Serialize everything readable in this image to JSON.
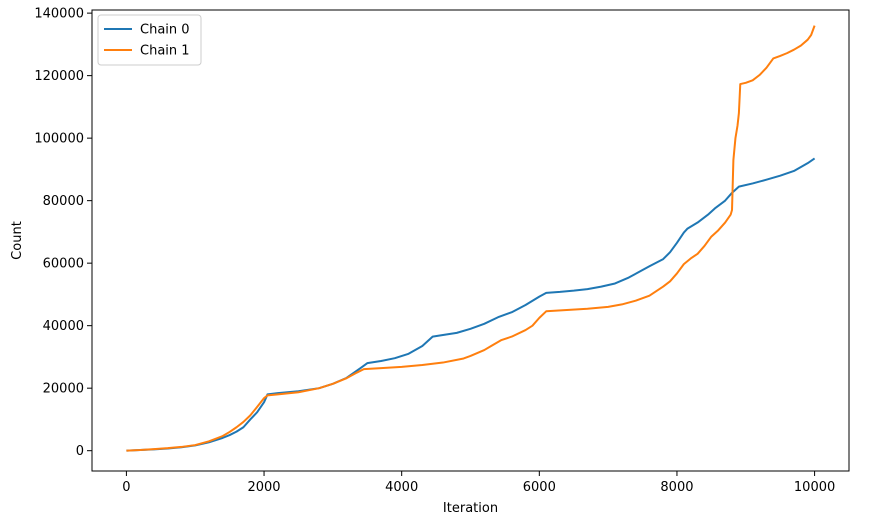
{
  "chart_data": {
    "type": "line",
    "title": "",
    "xlabel": "Iteration",
    "ylabel": "Count",
    "xlim": [
      -500,
      10500
    ],
    "ylim": [
      -6500,
      141000
    ],
    "xticks": [
      0,
      2000,
      4000,
      6000,
      8000,
      10000
    ],
    "yticks": [
      0,
      20000,
      40000,
      60000,
      80000,
      100000,
      120000,
      140000
    ],
    "grid": false,
    "legend_position": "top-left",
    "series": [
      {
        "name": "Chain 0",
        "color": "#1f77b4",
        "points": [
          [
            0,
            0
          ],
          [
            200,
            200
          ],
          [
            400,
            400
          ],
          [
            600,
            700
          ],
          [
            800,
            1100
          ],
          [
            1000,
            1700
          ],
          [
            1200,
            2700
          ],
          [
            1400,
            4100
          ],
          [
            1500,
            5000
          ],
          [
            1600,
            6100
          ],
          [
            1700,
            7500
          ],
          [
            1800,
            10000
          ],
          [
            1900,
            12300
          ],
          [
            2000,
            15500
          ],
          [
            2050,
            18000
          ],
          [
            2200,
            18400
          ],
          [
            2500,
            19000
          ],
          [
            2800,
            20000
          ],
          [
            3000,
            21400
          ],
          [
            3200,
            23300
          ],
          [
            3400,
            26400
          ],
          [
            3500,
            28000
          ],
          [
            3700,
            28700
          ],
          [
            3900,
            29600
          ],
          [
            4100,
            31000
          ],
          [
            4300,
            33500
          ],
          [
            4450,
            36500
          ],
          [
            4600,
            37000
          ],
          [
            4800,
            37700
          ],
          [
            5000,
            39000
          ],
          [
            5200,
            40600
          ],
          [
            5400,
            42700
          ],
          [
            5600,
            44300
          ],
          [
            5800,
            46600
          ],
          [
            6000,
            49300
          ],
          [
            6100,
            50500
          ],
          [
            6300,
            50800
          ],
          [
            6500,
            51200
          ],
          [
            6700,
            51700
          ],
          [
            6900,
            52500
          ],
          [
            7100,
            53500
          ],
          [
            7300,
            55400
          ],
          [
            7500,
            57800
          ],
          [
            7600,
            59000
          ],
          [
            7800,
            61300
          ],
          [
            7900,
            63500
          ],
          [
            8000,
            66500
          ],
          [
            8100,
            69800
          ],
          [
            8150,
            71000
          ],
          [
            8300,
            73000
          ],
          [
            8450,
            75500
          ],
          [
            8550,
            77500
          ],
          [
            8700,
            80000
          ],
          [
            8800,
            82500
          ],
          [
            8900,
            84500
          ],
          [
            9100,
            85500
          ],
          [
            9300,
            86700
          ],
          [
            9500,
            88000
          ],
          [
            9700,
            89500
          ],
          [
            9900,
            92000
          ],
          [
            10000,
            93500
          ]
        ]
      },
      {
        "name": "Chain 1",
        "color": "#ff7f0e",
        "points": [
          [
            0,
            0
          ],
          [
            200,
            200
          ],
          [
            400,
            500
          ],
          [
            600,
            800
          ],
          [
            800,
            1200
          ],
          [
            1000,
            1800
          ],
          [
            1200,
            3000
          ],
          [
            1400,
            4700
          ],
          [
            1500,
            6000
          ],
          [
            1600,
            7500
          ],
          [
            1700,
            9200
          ],
          [
            1800,
            11300
          ],
          [
            1900,
            14000
          ],
          [
            2000,
            16800
          ],
          [
            2050,
            17700
          ],
          [
            2200,
            18000
          ],
          [
            2500,
            18700
          ],
          [
            2800,
            20000
          ],
          [
            3000,
            21400
          ],
          [
            3200,
            23200
          ],
          [
            3350,
            25000
          ],
          [
            3450,
            26100
          ],
          [
            3700,
            26400
          ],
          [
            4000,
            26800
          ],
          [
            4300,
            27400
          ],
          [
            4600,
            28200
          ],
          [
            4900,
            29500
          ],
          [
            5000,
            30300
          ],
          [
            5200,
            32200
          ],
          [
            5300,
            33500
          ],
          [
            5450,
            35400
          ],
          [
            5600,
            36500
          ],
          [
            5800,
            38600
          ],
          [
            5900,
            40000
          ],
          [
            6000,
            42500
          ],
          [
            6100,
            44600
          ],
          [
            6400,
            45000
          ],
          [
            6700,
            45400
          ],
          [
            7000,
            46000
          ],
          [
            7200,
            46800
          ],
          [
            7400,
            48000
          ],
          [
            7600,
            49600
          ],
          [
            7800,
            52500
          ],
          [
            7900,
            54200
          ],
          [
            8000,
            56700
          ],
          [
            8100,
            59700
          ],
          [
            8200,
            61500
          ],
          [
            8300,
            63000
          ],
          [
            8400,
            65500
          ],
          [
            8500,
            68500
          ],
          [
            8600,
            70500
          ],
          [
            8700,
            73000
          ],
          [
            8780,
            75500
          ],
          [
            8800,
            77000
          ],
          [
            8820,
            93000
          ],
          [
            8850,
            100000
          ],
          [
            8880,
            104000
          ],
          [
            8900,
            108000
          ],
          [
            8920,
            117300
          ],
          [
            9000,
            117700
          ],
          [
            9100,
            118500
          ],
          [
            9200,
            120200
          ],
          [
            9300,
            122500
          ],
          [
            9400,
            125500
          ],
          [
            9500,
            126300
          ],
          [
            9600,
            127200
          ],
          [
            9700,
            128300
          ],
          [
            9800,
            129600
          ],
          [
            9900,
            131500
          ],
          [
            9950,
            133000
          ],
          [
            10000,
            136000
          ]
        ]
      }
    ]
  }
}
